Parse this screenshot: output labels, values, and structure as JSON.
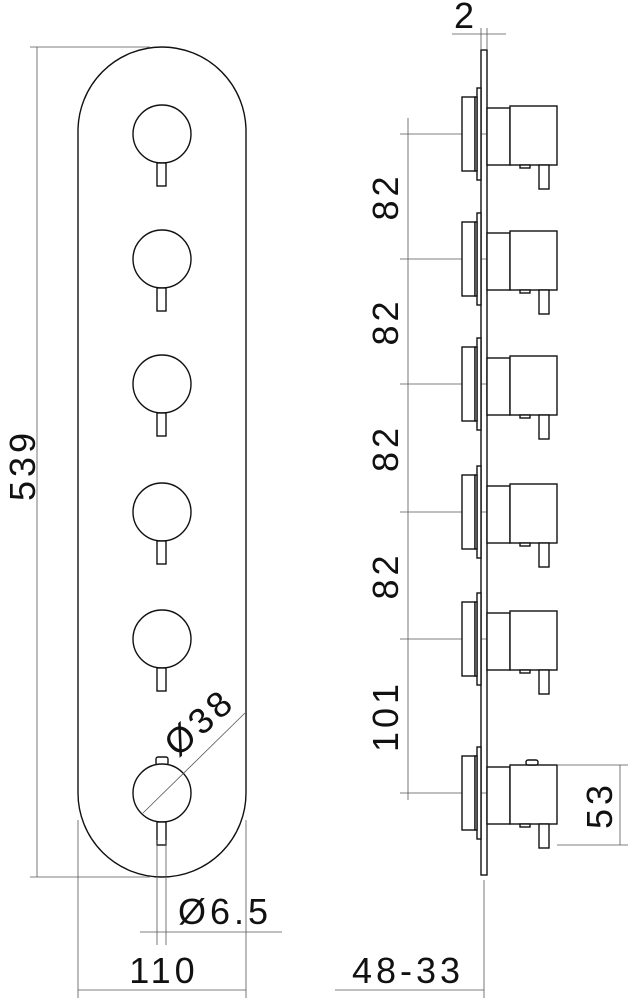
{
  "front_view": {
    "height_label": "539",
    "width_label": "110",
    "knob_diameter_label": "Ø38",
    "stem_diameter_label": "Ø6.5",
    "knob_count": 6
  },
  "side_view": {
    "plate_thickness_label": "2",
    "spacing_labels": [
      "82",
      "82",
      "82",
      "82",
      "101"
    ],
    "knob_height_label": "53",
    "depth_label": "48-33"
  },
  "colors": {
    "line": "#111111",
    "dimension": "#555555",
    "background": "#ffffff"
  }
}
